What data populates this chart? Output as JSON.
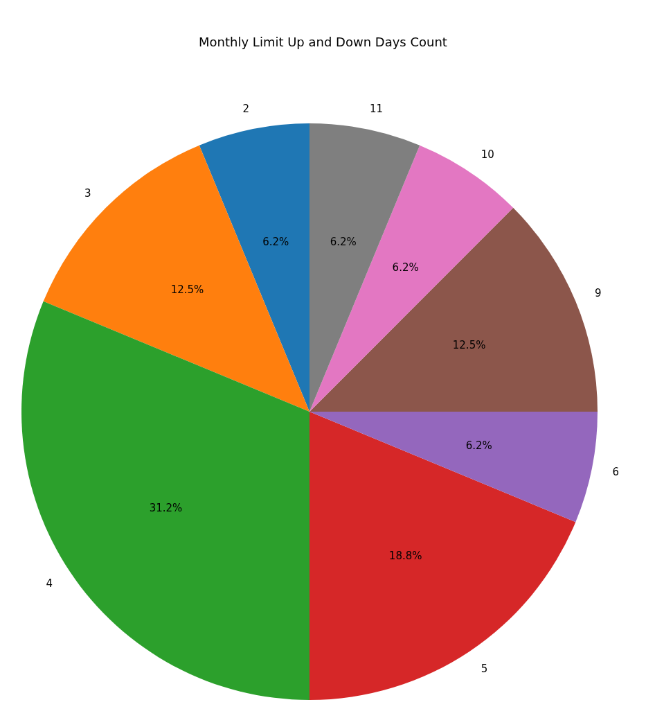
{
  "chart_data": {
    "type": "pie",
    "title": "Monthly Limit Up and Down Days Count",
    "categories": [
      "2",
      "3",
      "4",
      "5",
      "6",
      "9",
      "10",
      "11"
    ],
    "values": [
      6.25,
      12.5,
      31.25,
      18.75,
      6.25,
      12.5,
      6.25,
      6.25
    ],
    "value_labels": [
      "6.2%",
      "12.5%",
      "31.2%",
      "18.8%",
      "6.2%",
      "12.5%",
      "6.2%",
      "6.2%"
    ],
    "colors": [
      "#1f77b4",
      "#ff7f0e",
      "#2ca02c",
      "#d62728",
      "#9467bd",
      "#8c564b",
      "#e377c2",
      "#7f7f7f"
    ],
    "legend": false
  }
}
